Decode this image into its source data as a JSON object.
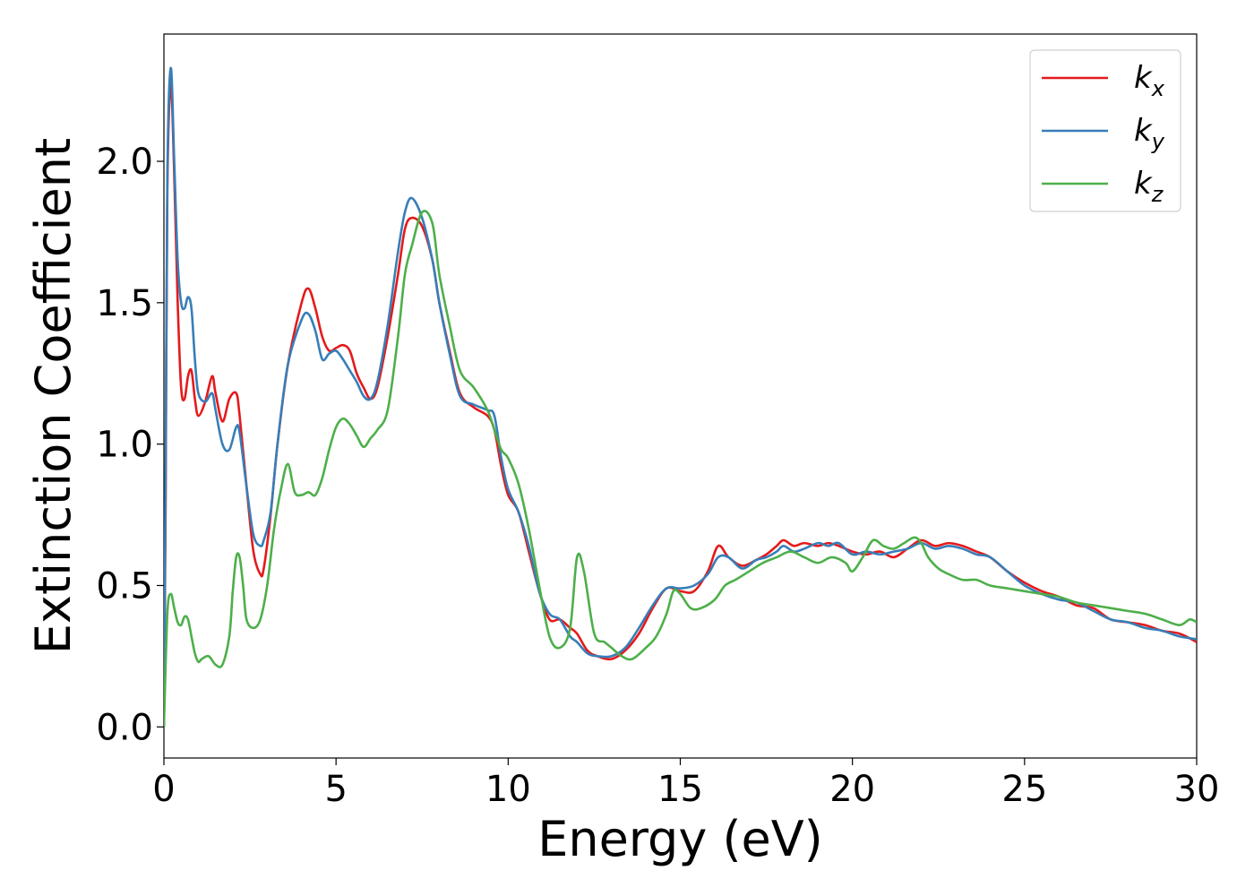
{
  "chart_data": {
    "type": "line",
    "xlabel": "Energy (eV)",
    "ylabel": "Extinction Coefficient",
    "xlim": [
      0,
      30
    ],
    "ylim": [
      -0.11,
      2.45
    ],
    "x_ticks": [
      "0",
      "5",
      "10",
      "15",
      "20",
      "25",
      "30"
    ],
    "y_ticks": [
      "0.0",
      "0.5",
      "1.0",
      "1.5",
      "2.0"
    ],
    "grid": false,
    "legend_position": "top-right",
    "series": [
      {
        "name": "k_x",
        "label_main": "k",
        "label_sub": "x",
        "color": "#e41a1c",
        "x": [
          0,
          0.05,
          0.1,
          0.2,
          0.3,
          0.4,
          0.5,
          0.6,
          0.7,
          0.8,
          0.9,
          1.0,
          1.2,
          1.4,
          1.5,
          1.7,
          1.9,
          2.1,
          2.2,
          2.4,
          2.6,
          2.8,
          2.9,
          3.1,
          3.3,
          3.6,
          4.0,
          4.2,
          4.4,
          4.6,
          4.8,
          5.0,
          5.2,
          5.4,
          5.6,
          5.8,
          6.0,
          6.2,
          6.5,
          6.8,
          7.0,
          7.2,
          7.5,
          7.8,
          8.0,
          8.3,
          8.6,
          9.0,
          9.4,
          9.6,
          9.8,
          10.0,
          10.3,
          10.6,
          10.9,
          11.2,
          11.5,
          11.8,
          12.0,
          12.3,
          12.6,
          13.0,
          13.4,
          13.8,
          14.2,
          14.6,
          15.0,
          15.4,
          15.8,
          16.1,
          16.4,
          16.8,
          17.2,
          17.5,
          17.8,
          18.0,
          18.3,
          18.6,
          19.0,
          19.3,
          19.6,
          20.0,
          20.4,
          20.8,
          21.2,
          21.6,
          22.0,
          22.4,
          22.8,
          23.2,
          23.6,
          24.0,
          24.5,
          25.0,
          25.5,
          26.0,
          26.5,
          27.0,
          27.5,
          28.0,
          28.5,
          29.0,
          29.5,
          30.0
        ],
        "values": [
          0.0,
          0.8,
          1.9,
          2.27,
          1.95,
          1.5,
          1.2,
          1.16,
          1.24,
          1.26,
          1.16,
          1.1,
          1.15,
          1.24,
          1.18,
          1.08,
          1.16,
          1.18,
          1.1,
          0.85,
          0.62,
          0.54,
          0.56,
          0.75,
          1.0,
          1.28,
          1.5,
          1.55,
          1.48,
          1.38,
          1.33,
          1.34,
          1.35,
          1.33,
          1.25,
          1.2,
          1.16,
          1.2,
          1.38,
          1.6,
          1.76,
          1.8,
          1.77,
          1.65,
          1.5,
          1.33,
          1.18,
          1.13,
          1.1,
          1.05,
          0.92,
          0.82,
          0.76,
          0.62,
          0.48,
          0.38,
          0.38,
          0.35,
          0.33,
          0.27,
          0.25,
          0.24,
          0.27,
          0.33,
          0.42,
          0.49,
          0.48,
          0.48,
          0.55,
          0.64,
          0.6,
          0.57,
          0.59,
          0.61,
          0.64,
          0.66,
          0.64,
          0.65,
          0.64,
          0.65,
          0.64,
          0.62,
          0.61,
          0.62,
          0.6,
          0.63,
          0.66,
          0.64,
          0.65,
          0.64,
          0.62,
          0.6,
          0.55,
          0.51,
          0.48,
          0.46,
          0.43,
          0.42,
          0.38,
          0.37,
          0.36,
          0.34,
          0.33,
          0.3
        ]
      },
      {
        "name": "k_y",
        "label_main": "k",
        "label_sub": "y",
        "color": "#377eb8",
        "x": [
          0,
          0.05,
          0.1,
          0.2,
          0.3,
          0.4,
          0.5,
          0.6,
          0.7,
          0.8,
          0.9,
          1.0,
          1.2,
          1.4,
          1.5,
          1.7,
          1.9,
          2.1,
          2.2,
          2.4,
          2.6,
          2.8,
          2.9,
          3.1,
          3.3,
          3.6,
          4.0,
          4.2,
          4.4,
          4.6,
          4.8,
          5.0,
          5.2,
          5.4,
          5.6,
          5.8,
          6.0,
          6.2,
          6.5,
          6.8,
          7.0,
          7.2,
          7.5,
          7.8,
          8.0,
          8.3,
          8.6,
          9.0,
          9.4,
          9.6,
          9.8,
          10.0,
          10.3,
          10.6,
          10.9,
          11.2,
          11.5,
          11.8,
          12.0,
          12.3,
          12.6,
          13.0,
          13.4,
          13.8,
          14.2,
          14.6,
          15.0,
          15.4,
          15.8,
          16.1,
          16.4,
          16.8,
          17.2,
          17.5,
          17.8,
          18.0,
          18.3,
          18.6,
          19.0,
          19.3,
          19.6,
          20.0,
          20.4,
          20.8,
          21.2,
          21.6,
          22.0,
          22.4,
          22.8,
          23.2,
          23.6,
          24.0,
          24.5,
          25.0,
          25.5,
          26.0,
          26.5,
          27.0,
          27.5,
          28.0,
          28.5,
          29.0,
          29.5,
          30.0
        ],
        "values": [
          0.0,
          0.9,
          1.95,
          2.33,
          2.0,
          1.65,
          1.5,
          1.48,
          1.52,
          1.48,
          1.3,
          1.18,
          1.15,
          1.18,
          1.12,
          1.0,
          0.98,
          1.06,
          1.04,
          0.85,
          0.68,
          0.64,
          0.66,
          0.76,
          1.0,
          1.28,
          1.44,
          1.46,
          1.4,
          1.3,
          1.32,
          1.33,
          1.3,
          1.26,
          1.22,
          1.17,
          1.16,
          1.22,
          1.42,
          1.68,
          1.82,
          1.87,
          1.8,
          1.65,
          1.5,
          1.32,
          1.17,
          1.14,
          1.12,
          1.1,
          0.95,
          0.84,
          0.76,
          0.64,
          0.48,
          0.4,
          0.38,
          0.32,
          0.3,
          0.26,
          0.25,
          0.25,
          0.28,
          0.35,
          0.43,
          0.49,
          0.49,
          0.5,
          0.54,
          0.6,
          0.6,
          0.56,
          0.59,
          0.6,
          0.62,
          0.64,
          0.62,
          0.63,
          0.65,
          0.64,
          0.65,
          0.61,
          0.62,
          0.61,
          0.62,
          0.63,
          0.65,
          0.63,
          0.64,
          0.63,
          0.61,
          0.6,
          0.55,
          0.5,
          0.47,
          0.45,
          0.44,
          0.41,
          0.38,
          0.37,
          0.35,
          0.34,
          0.32,
          0.31
        ]
      },
      {
        "name": "k_z",
        "label_main": "k",
        "label_sub": "z",
        "color": "#4daf4a",
        "x": [
          0,
          0.1,
          0.2,
          0.3,
          0.4,
          0.5,
          0.6,
          0.7,
          0.8,
          0.9,
          1.0,
          1.1,
          1.3,
          1.5,
          1.7,
          1.9,
          2.0,
          2.1,
          2.2,
          2.3,
          2.4,
          2.6,
          2.8,
          3.0,
          3.2,
          3.4,
          3.6,
          3.8,
          4.0,
          4.2,
          4.4,
          4.6,
          4.8,
          5.0,
          5.2,
          5.4,
          5.6,
          5.8,
          6.0,
          6.2,
          6.5,
          6.8,
          7.0,
          7.2,
          7.5,
          7.8,
          8.0,
          8.3,
          8.6,
          9.0,
          9.4,
          9.6,
          9.8,
          10.0,
          10.3,
          10.6,
          10.9,
          11.2,
          11.5,
          11.8,
          12.0,
          12.2,
          12.5,
          12.8,
          13.0,
          13.3,
          13.6,
          14.0,
          14.3,
          14.6,
          14.8,
          15.0,
          15.3,
          15.6,
          16.0,
          16.3,
          16.6,
          17.0,
          17.4,
          17.8,
          18.2,
          18.6,
          19.0,
          19.4,
          19.8,
          20.0,
          20.3,
          20.6,
          20.9,
          21.2,
          21.5,
          21.8,
          22.0,
          22.2,
          22.5,
          22.8,
          23.2,
          23.6,
          24.0,
          24.5,
          25.0,
          25.5,
          26.0,
          26.5,
          27.0,
          27.5,
          28.0,
          28.5,
          29.0,
          29.5,
          29.8,
          30.0
        ],
        "values": [
          0.0,
          0.4,
          0.47,
          0.42,
          0.37,
          0.36,
          0.39,
          0.38,
          0.32,
          0.26,
          0.23,
          0.24,
          0.25,
          0.22,
          0.22,
          0.32,
          0.48,
          0.6,
          0.6,
          0.5,
          0.38,
          0.35,
          0.38,
          0.5,
          0.7,
          0.84,
          0.93,
          0.83,
          0.82,
          0.83,
          0.82,
          0.88,
          0.98,
          1.06,
          1.09,
          1.07,
          1.03,
          0.99,
          1.02,
          1.05,
          1.12,
          1.38,
          1.6,
          1.7,
          1.82,
          1.78,
          1.6,
          1.42,
          1.26,
          1.2,
          1.12,
          1.05,
          0.98,
          0.95,
          0.86,
          0.7,
          0.5,
          0.32,
          0.28,
          0.35,
          0.6,
          0.55,
          0.33,
          0.3,
          0.28,
          0.25,
          0.24,
          0.28,
          0.32,
          0.4,
          0.48,
          0.47,
          0.42,
          0.42,
          0.45,
          0.5,
          0.52,
          0.55,
          0.58,
          0.6,
          0.62,
          0.6,
          0.58,
          0.6,
          0.58,
          0.55,
          0.6,
          0.66,
          0.64,
          0.63,
          0.65,
          0.67,
          0.65,
          0.6,
          0.56,
          0.54,
          0.52,
          0.52,
          0.5,
          0.49,
          0.48,
          0.47,
          0.46,
          0.44,
          0.43,
          0.42,
          0.41,
          0.4,
          0.38,
          0.36,
          0.38,
          0.37
        ]
      }
    ]
  }
}
